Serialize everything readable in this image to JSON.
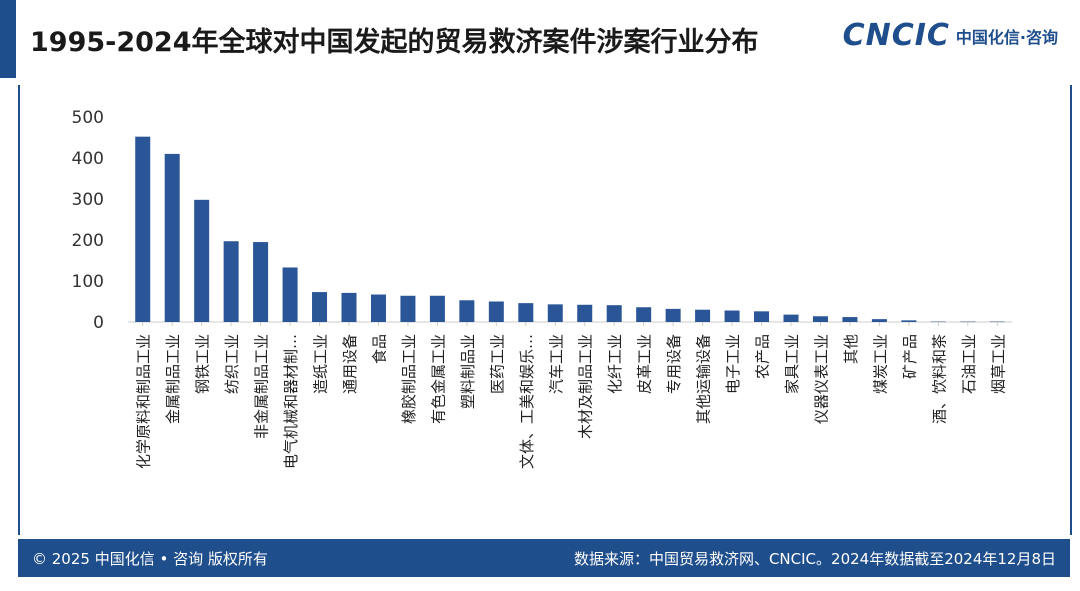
{
  "header": {
    "title": "1995-2024年全球对中国发起的贸易救济案件涉案行业分布",
    "logo_mark": "CNCIC",
    "logo_text": "中国化信·咨询"
  },
  "footer": {
    "copyright": "© 2025 中国化信 • 咨询 版权所有",
    "source": "数据来源：中国贸易救济网、CNCIC。2024年数据截至2024年12月8日"
  },
  "colors": {
    "bar": "#2a5597",
    "accent": "#1f4e8c",
    "axis": "#cccccc"
  },
  "chart_data": {
    "type": "bar",
    "categories": [
      "化学原料和制品工业",
      "金属制品工业",
      "钢铁工业",
      "纺织工业",
      "非金属制品工业",
      "电气机械和器材制…",
      "造纸工业",
      "通用设备",
      "食品",
      "橡胶制品工业",
      "有色金属工业",
      "塑料制品业",
      "医药工业",
      "文体、工美和娱乐…",
      "汽车工业",
      "木材及制品工业",
      "化纤工业",
      "皮革工业",
      "专用设备",
      "其他运输设备",
      "电子工业",
      "农产品",
      "家具工业",
      "仪器仪表工业",
      "其他",
      "煤炭工业",
      "矿产品",
      "酒、饮料和茶",
      "石油工业",
      "烟草工业"
    ],
    "values": [
      452,
      410,
      298,
      197,
      195,
      133,
      73,
      71,
      67,
      64,
      64,
      53,
      50,
      46,
      43,
      42,
      41,
      36,
      32,
      30,
      28,
      26,
      18,
      14,
      12,
      7,
      4,
      1,
      1,
      1
    ],
    "title": "",
    "xlabel": "",
    "ylabel": "",
    "ylim": [
      0,
      500
    ],
    "yticks": [
      0,
      100,
      200,
      300,
      400,
      500
    ],
    "grid": false
  }
}
